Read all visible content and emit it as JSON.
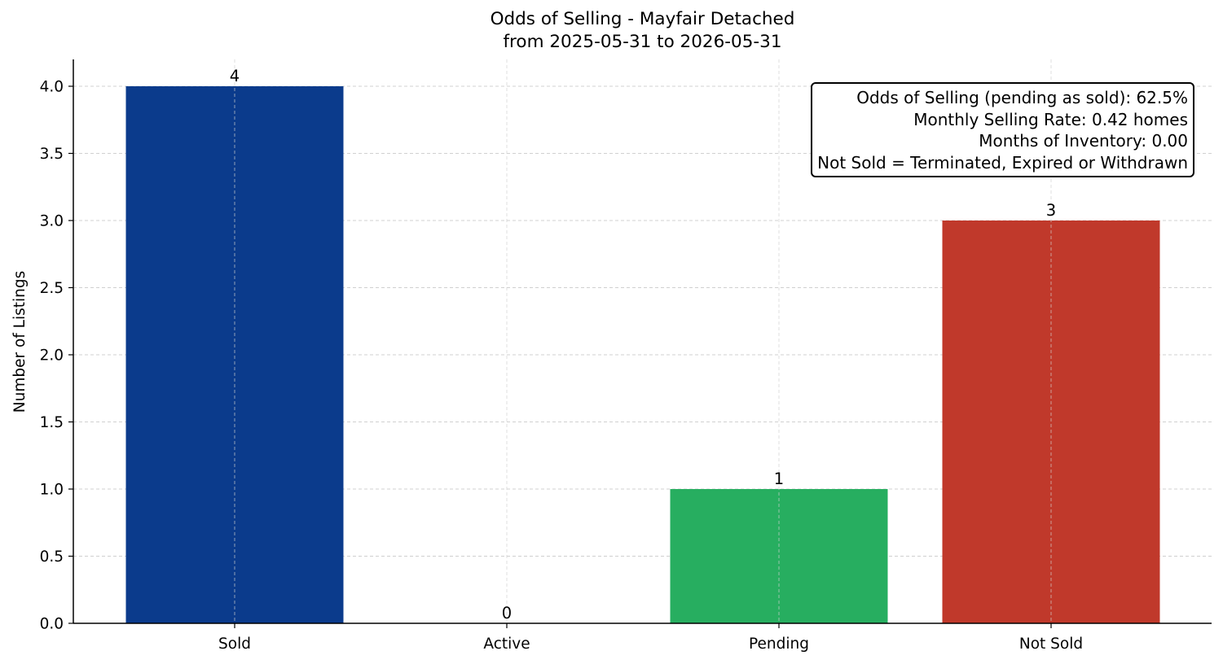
{
  "chart_data": {
    "type": "bar",
    "title_line1": "Odds of Selling - Mayfair Detached",
    "title_line2": "from 2025-05-31 to 2026-05-31",
    "xlabel": "",
    "ylabel": "Number of Listings",
    "categories": [
      "Sold",
      "Active",
      "Pending",
      "Not Sold"
    ],
    "values": [
      4,
      0,
      1,
      3
    ],
    "value_labels": [
      "4",
      "0",
      "1",
      "3"
    ],
    "colors": [
      "#0b3b8c",
      "#2f6ed6",
      "#27ae60",
      "#c0392b"
    ],
    "ylim": [
      0,
      4.2
    ],
    "yticks": [
      0.0,
      0.5,
      1.0,
      1.5,
      2.0,
      2.5,
      3.0,
      3.5,
      4.0
    ],
    "ytick_labels": [
      "0.0",
      "0.5",
      "1.0",
      "1.5",
      "2.0",
      "2.5",
      "3.0",
      "3.5",
      "4.0"
    ],
    "grid": true,
    "annotation_lines": [
      "Odds of Selling (pending as sold): 62.5%",
      "Monthly Selling Rate: 0.42 homes",
      "Months of Inventory: 0.00",
      "Not Sold = Terminated, Expired or Withdrawn"
    ],
    "annotation_placement": "top-right"
  }
}
